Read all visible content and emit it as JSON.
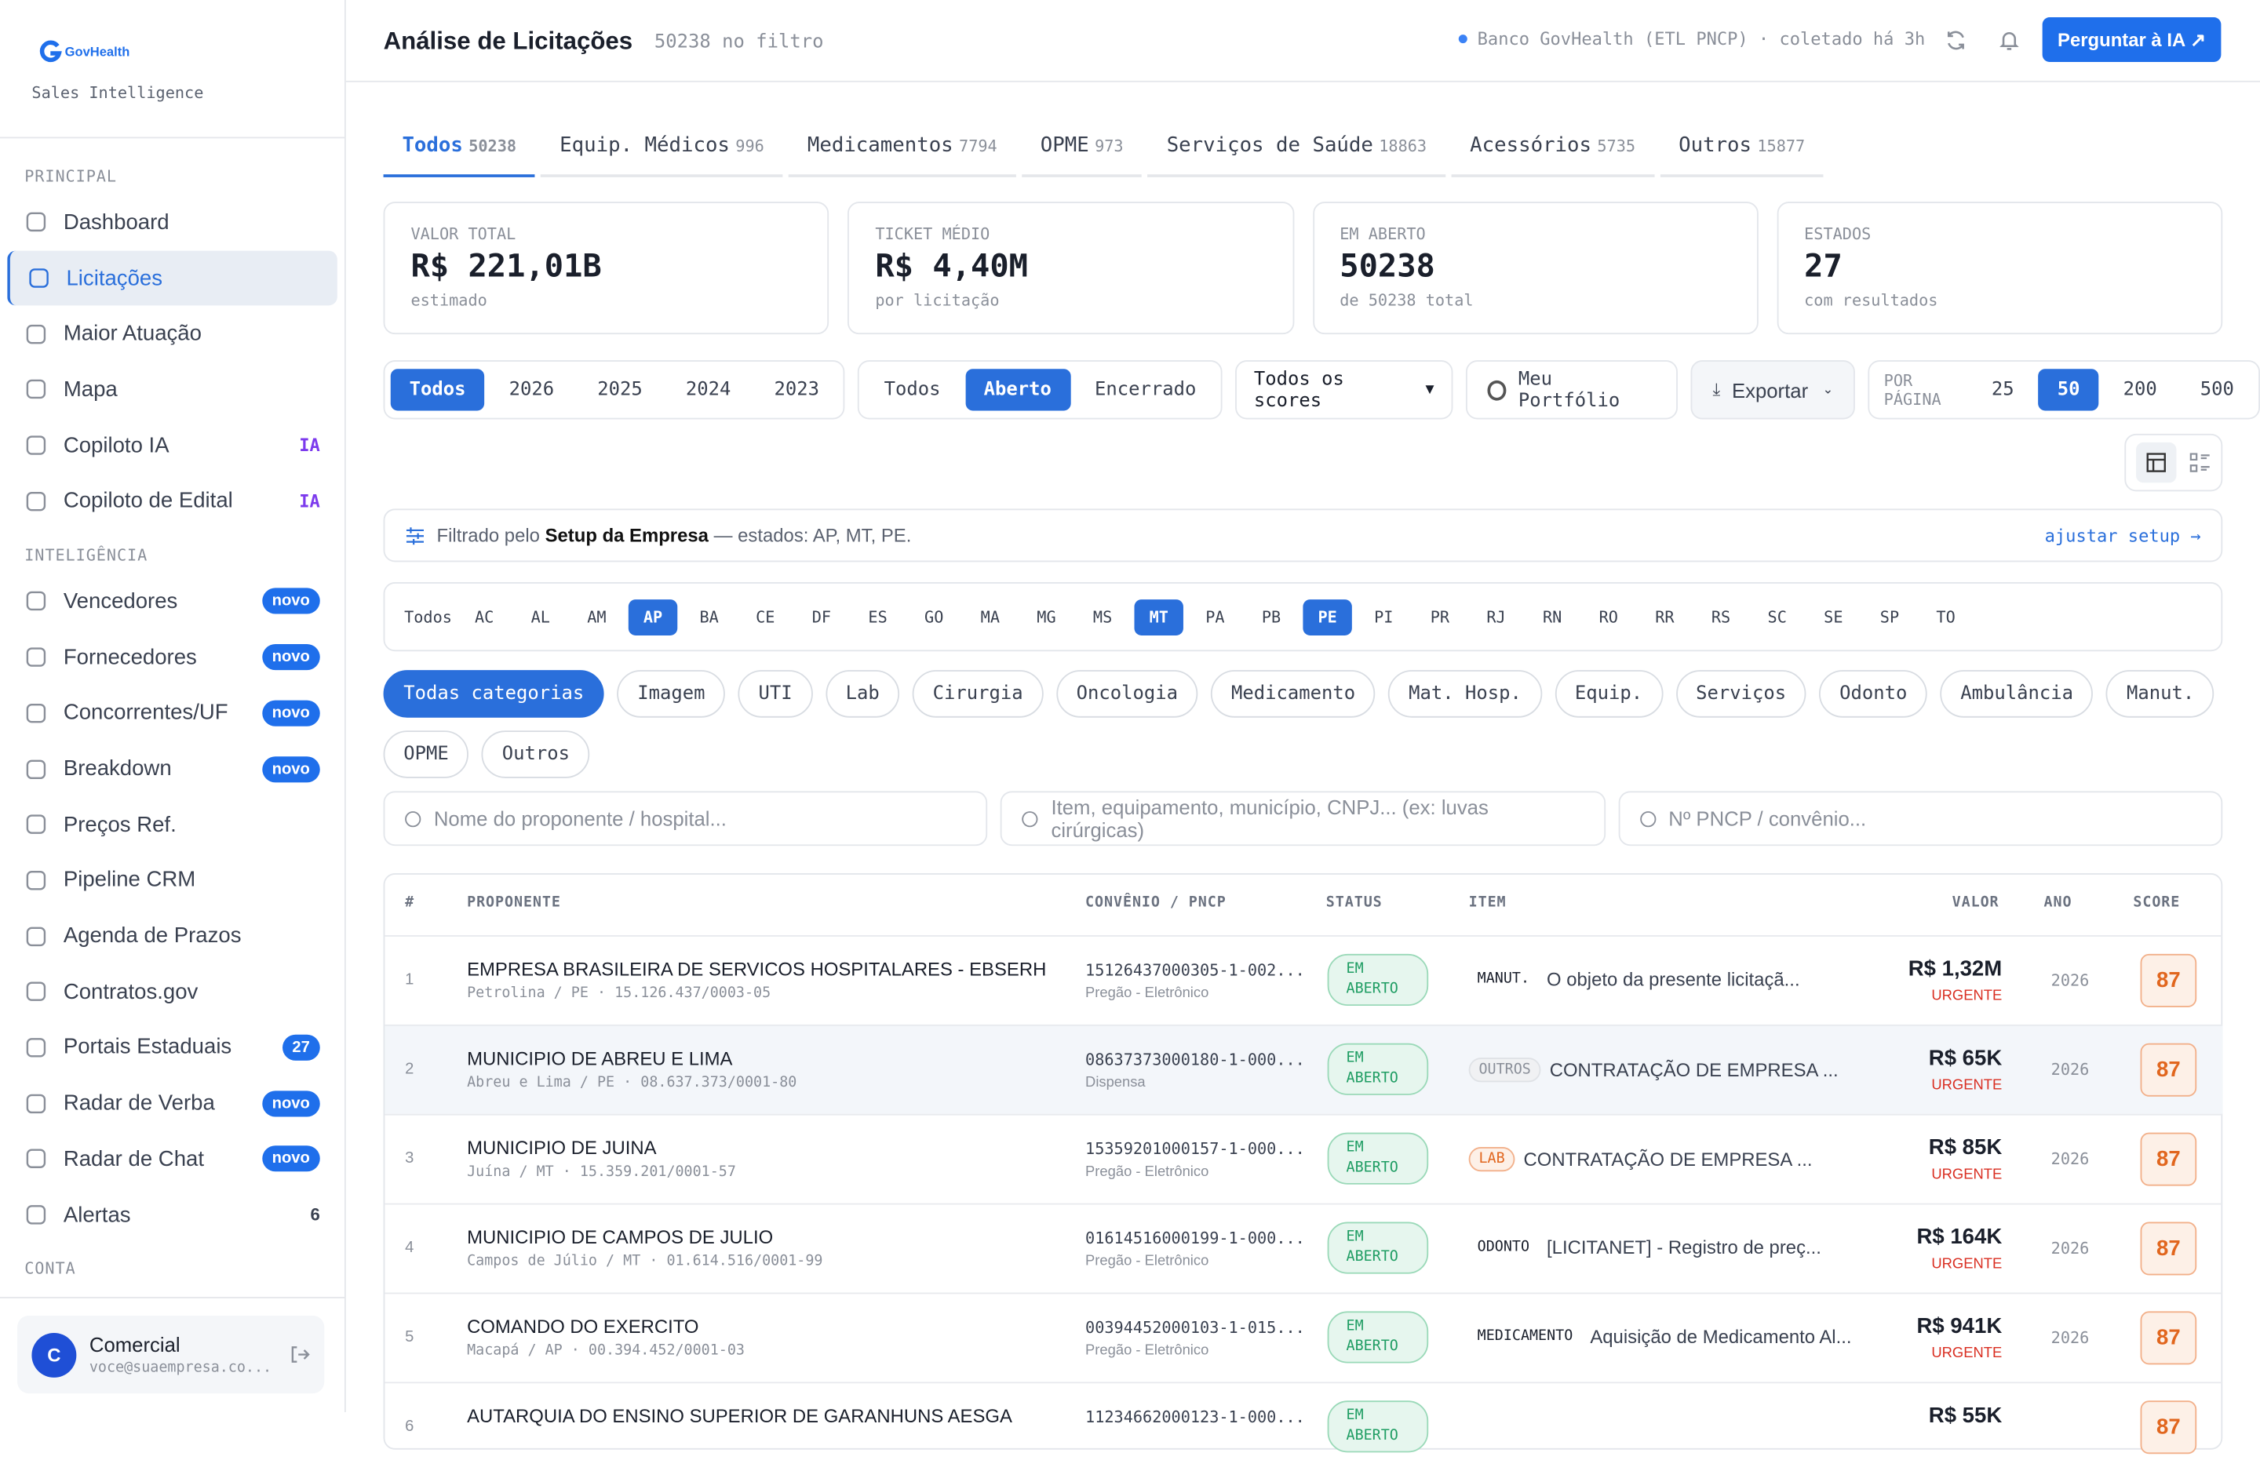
{
  "brand": {
    "logo": "GovHealth",
    "tagline": "Sales Intelligence"
  },
  "sidebar": {
    "sections": [
      {
        "title": "PRINCIPAL",
        "items": [
          {
            "label": "Dashboard"
          },
          {
            "label": "Licitações",
            "active": true
          },
          {
            "label": "Maior Atuação"
          },
          {
            "label": "Mapa"
          },
          {
            "label": "Copiloto IA",
            "badge": "IA",
            "badge_style": "text"
          },
          {
            "label": "Copiloto de Edital",
            "badge": "IA",
            "badge_style": "text"
          }
        ]
      },
      {
        "title": "INTELIGÊNCIA",
        "items": [
          {
            "label": "Vencedores",
            "badge": "novo",
            "badge_style": "pill"
          },
          {
            "label": "Fornecedores",
            "badge": "novo",
            "badge_style": "pill"
          },
          {
            "label": "Concorrentes/UF",
            "badge": "novo",
            "badge_style": "pill"
          },
          {
            "label": "Breakdown",
            "badge": "novo",
            "badge_style": "pill"
          },
          {
            "label": "Preços Ref."
          },
          {
            "label": "Pipeline CRM"
          },
          {
            "label": "Agenda de Prazos"
          },
          {
            "label": "Contratos.gov"
          },
          {
            "label": "Portais Estaduais",
            "badge": "27",
            "badge_style": "pill"
          },
          {
            "label": "Radar de Verba",
            "badge": "novo",
            "badge_style": "pill"
          },
          {
            "label": "Radar de Chat",
            "badge": "novo",
            "badge_style": "pill"
          },
          {
            "label": "Alertas",
            "badge": "6",
            "badge_style": "plain"
          }
        ]
      },
      {
        "title": "CONTA",
        "items": []
      }
    ]
  },
  "user": {
    "initial": "C",
    "name": "Comercial",
    "email": "voce@suaempresa.co..."
  },
  "header": {
    "title": "Análise de Licitações",
    "count": "50238 no filtro",
    "source": "Banco GovHealth (ETL PNCP) · coletado há 3h",
    "button": "Perguntar à IA ↗"
  },
  "tabs": [
    {
      "label": "Todos",
      "count": "50238",
      "active": true
    },
    {
      "label": "Equip. Médicos",
      "count": "996"
    },
    {
      "label": "Medicamentos",
      "count": "7794"
    },
    {
      "label": "OPME",
      "count": "973"
    },
    {
      "label": "Serviços de Saúde",
      "count": "18863"
    },
    {
      "label": "Acessórios",
      "count": "5735"
    },
    {
      "label": "Outros",
      "count": "15877"
    }
  ],
  "kpis": [
    {
      "label": "VALOR TOTAL",
      "value": "R$ 221,01B",
      "note": "estimado"
    },
    {
      "label": "TICKET MÉDIO",
      "value": "R$ 4,40M",
      "note": "por licitação"
    },
    {
      "label": "EM ABERTO",
      "value": "50238",
      "note": "de 50238 total"
    },
    {
      "label": "ESTADOS",
      "value": "27",
      "note": "com resultados"
    }
  ],
  "year_filter": {
    "options": [
      "Todos",
      "2026",
      "2025",
      "2024",
      "2023"
    ],
    "active": 0
  },
  "status_filter": {
    "options": [
      "Todos",
      "Aberto",
      "Encerrado"
    ],
    "active": 1
  },
  "score_select": "Todos os scores",
  "portfolio": "Meu Portfólio",
  "export": "Exportar",
  "per_page": {
    "label": "POR PÁGINA",
    "options": [
      "25",
      "50",
      "200",
      "500"
    ],
    "active": 1
  },
  "setup_notice": {
    "prefix": "Filtrado pelo",
    "strong": "Setup da Empresa",
    "suffix": "— estados: AP, MT, PE.",
    "link": "ajustar setup →"
  },
  "states": {
    "options": [
      "Todos",
      "AC",
      "AL",
      "AM",
      "AP",
      "BA",
      "CE",
      "DF",
      "ES",
      "GO",
      "MA",
      "MG",
      "MS",
      "MT",
      "PA",
      "PB",
      "PE",
      "PI",
      "PR",
      "RJ",
      "RN",
      "RO",
      "RR",
      "RS",
      "SC",
      "SE",
      "SP",
      "TO"
    ],
    "active": [
      4,
      13,
      16
    ]
  },
  "categories": {
    "options": [
      "Todas categorias",
      "Imagem",
      "UTI",
      "Lab",
      "Cirurgia",
      "Oncologia",
      "Medicamento",
      "Mat. Hosp.",
      "Equip.",
      "Serviços",
      "Odonto",
      "Ambulância",
      "Manut.",
      "OPME",
      "Outros"
    ],
    "active": 0
  },
  "search_placeholders": [
    "Nome do proponente / hospital...",
    "Item, equipamento, município, CNPJ... (ex: luvas cirúrgicas)",
    "Nº PNCP / convênio..."
  ],
  "table": {
    "columns": [
      "#",
      "PROPONENTE",
      "CONVÊNIO / PNCP",
      "STATUS",
      "ITEM",
      "VALOR",
      "ANO",
      "SCORE"
    ],
    "rows": [
      {
        "n": "1",
        "name": "EMPRESA BRASILEIRA DE SERVICOS HOSPITALARES - EBSERH",
        "location": "Petrolina / PE · 15.126.437/0003-05",
        "pncp": "15126437000305-1-002...",
        "modality": "Pregão - Eletrônico",
        "status": "EM ABERTO",
        "tag": "MANUT.",
        "tag_style": "plain",
        "item": "O objeto da presente licitaçã...",
        "value": "R$ 1,32M",
        "urgency": "URGENTE",
        "year": "2026",
        "score": "87"
      },
      {
        "n": "2",
        "name": "MUNICIPIO DE ABREU E LIMA",
        "location": "Abreu e Lima / PE · 08.637.373/0001-80",
        "pncp": "08637373000180-1-000...",
        "modality": "Dispensa",
        "status": "EM ABERTO",
        "tag": "OUTROS",
        "tag_style": "gray",
        "item": "CONTRATAÇÃO DE EMPRESA ...",
        "value": "R$ 65K",
        "urgency": "URGENTE",
        "year": "2026",
        "score": "87",
        "highlighted": true
      },
      {
        "n": "3",
        "name": "MUNICIPIO DE JUINA",
        "location": "Juína / MT · 15.359.201/0001-57",
        "pncp": "15359201000157-1-000...",
        "modality": "Pregão - Eletrônico",
        "status": "EM ABERTO",
        "tag": "LAB",
        "tag_style": "orange",
        "item": "CONTRATAÇÃO DE EMPRESA ...",
        "value": "R$ 85K",
        "urgency": "URGENTE",
        "year": "2026",
        "score": "87"
      },
      {
        "n": "4",
        "name": "MUNICIPIO DE CAMPOS DE JULIO",
        "location": "Campos de Júlio / MT · 01.614.516/0001-99",
        "pncp": "01614516000199-1-000...",
        "modality": "Pregão - Eletrônico",
        "status": "EM ABERTO",
        "tag": "ODONTO",
        "tag_style": "plain",
        "item": "[LICITANET] - Registro de preç...",
        "value": "R$ 164K",
        "urgency": "URGENTE",
        "year": "2026",
        "score": "87"
      },
      {
        "n": "5",
        "name": "COMANDO DO EXERCITO",
        "location": "Macapá / AP · 00.394.452/0001-03",
        "pncp": "00394452000103-1-015...",
        "modality": "Pregão - Eletrônico",
        "status": "EM ABERTO",
        "tag": "MEDICAMENTO",
        "tag_style": "plain",
        "item": "Aquisição de Medicamento Al...",
        "value": "R$ 941K",
        "urgency": "URGENTE",
        "year": "2026",
        "score": "87"
      },
      {
        "n": "6",
        "name": "AUTARQUIA DO ENSINO SUPERIOR DE GARANHUNS AESGA",
        "location": "",
        "pncp": "11234662000123-1-000...",
        "modality": "",
        "status": "EM ABERTO",
        "tag": "",
        "tag_style": "plain",
        "item": "",
        "value": "R$ 55K",
        "urgency": "",
        "year": "",
        "score": "87"
      }
    ]
  }
}
